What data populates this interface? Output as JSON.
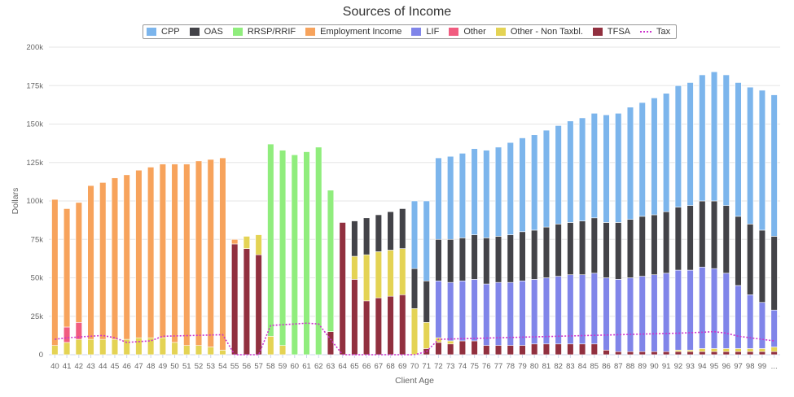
{
  "colors": {
    "cpp": "#7cb5ec",
    "oas": "#434348",
    "rrsp": "#90ed7d",
    "employment": "#f7a35c",
    "lif": "#8085e9",
    "other": "#f15c80",
    "nontax": "#e4d354",
    "tfsa": "#91303f",
    "tax": "#cc33cc",
    "grid": "#e6e6e6"
  },
  "chart_data": {
    "type": "bar",
    "stacked": true,
    "title": "Sources of Income",
    "xlabel": "Client Age",
    "ylabel": "Dollars",
    "ylim": [
      0,
      200000
    ],
    "y_ticks": [
      "0",
      "25k",
      "50k",
      "75k",
      "100k",
      "125k",
      "150k",
      "175k",
      "200k"
    ],
    "legend_position": "top",
    "grid": true,
    "categories": [
      "40",
      "41",
      "42",
      "43",
      "44",
      "45",
      "46",
      "47",
      "48",
      "49",
      "50",
      "51",
      "52",
      "53",
      "54",
      "55",
      "56",
      "57",
      "58",
      "59",
      "60",
      "61",
      "62",
      "63",
      "64",
      "65",
      "66",
      "67",
      "68",
      "69",
      "70",
      "71",
      "72",
      "73",
      "74",
      "75",
      "76",
      "77",
      "78",
      "79",
      "80",
      "81",
      "82",
      "83",
      "84",
      "85",
      "86",
      "87",
      "88",
      "89",
      "90",
      "91",
      "92",
      "93",
      "94",
      "95",
      "96",
      "97",
      "98",
      "99",
      "..."
    ],
    "series": [
      {
        "name": "CPP",
        "key": "cpp",
        "values": [
          0,
          0,
          0,
          0,
          0,
          0,
          0,
          0,
          0,
          0,
          0,
          0,
          0,
          0,
          0,
          0,
          0,
          0,
          0,
          0,
          0,
          0,
          0,
          0,
          0,
          0,
          0,
          0,
          0,
          0,
          44000,
          52000,
          53000,
          54000,
          55000,
          56000,
          57000,
          58000,
          60000,
          61000,
          62000,
          63000,
          64000,
          66000,
          67000,
          68000,
          70000,
          71000,
          73000,
          74000,
          76000,
          77000,
          79000,
          80000,
          82000,
          84000,
          85000,
          87000,
          89000,
          91000,
          92000
        ]
      },
      {
        "name": "OAS",
        "key": "oas",
        "values": [
          0,
          0,
          0,
          0,
          0,
          0,
          0,
          0,
          0,
          0,
          0,
          0,
          0,
          0,
          0,
          0,
          0,
          0,
          0,
          0,
          0,
          0,
          0,
          0,
          0,
          23000,
          24000,
          24000,
          25000,
          26000,
          26000,
          27000,
          27000,
          28000,
          28000,
          29000,
          30000,
          30000,
          31000,
          32000,
          32000,
          33000,
          34000,
          34000,
          35000,
          36000,
          36000,
          37000,
          38000,
          39000,
          39000,
          40000,
          41000,
          42000,
          43000,
          44000,
          44000,
          45000,
          46000,
          47000,
          48000
        ]
      },
      {
        "name": "RRSP/RRIF",
        "key": "rrsp",
        "values": [
          0,
          0,
          0,
          0,
          0,
          0,
          0,
          0,
          0,
          0,
          0,
          0,
          0,
          0,
          0,
          0,
          0,
          0,
          125000,
          127000,
          130000,
          132000,
          135000,
          92000,
          0,
          0,
          0,
          0,
          0,
          0,
          0,
          0,
          0,
          0,
          0,
          0,
          0,
          0,
          0,
          0,
          0,
          0,
          0,
          0,
          0,
          0,
          0,
          0,
          0,
          0,
          0,
          0,
          0,
          0,
          0,
          0,
          0,
          0,
          0,
          0,
          0
        ]
      },
      {
        "name": "Employment Income",
        "key": "employment",
        "values": [
          95000,
          77000,
          78000,
          100000,
          102000,
          105000,
          107000,
          109000,
          111000,
          113000,
          116000,
          118000,
          120000,
          122000,
          125000,
          3000,
          0,
          0,
          0,
          0,
          0,
          0,
          0,
          0,
          0,
          0,
          0,
          0,
          0,
          0,
          0,
          0,
          0,
          0,
          0,
          0,
          0,
          0,
          0,
          0,
          0,
          0,
          0,
          0,
          0,
          0,
          0,
          0,
          0,
          0,
          0,
          0,
          0,
          0,
          0,
          0,
          0,
          0,
          0,
          0,
          0
        ]
      },
      {
        "name": "LIF",
        "key": "lif",
        "values": [
          0,
          0,
          0,
          0,
          0,
          0,
          0,
          0,
          0,
          0,
          0,
          0,
          0,
          0,
          0,
          0,
          0,
          0,
          0,
          0,
          0,
          0,
          0,
          0,
          0,
          0,
          0,
          0,
          0,
          0,
          0,
          0,
          37000,
          38000,
          39000,
          40000,
          40000,
          41000,
          41000,
          42000,
          42000,
          43000,
          44000,
          45000,
          45000,
          46000,
          47000,
          47000,
          48000,
          49000,
          50000,
          51000,
          52000,
          52000,
          53000,
          52000,
          49000,
          41000,
          35000,
          30000,
          24000
        ]
      },
      {
        "name": "Other",
        "key": "other",
        "values": [
          0,
          10000,
          11000,
          0,
          0,
          0,
          0,
          0,
          0,
          0,
          0,
          0,
          0,
          0,
          0,
          0,
          0,
          0,
          0,
          0,
          0,
          0,
          0,
          0,
          0,
          0,
          0,
          0,
          0,
          0,
          0,
          0,
          0,
          0,
          0,
          0,
          0,
          0,
          0,
          0,
          0,
          0,
          0,
          0,
          0,
          0,
          0,
          0,
          0,
          0,
          0,
          0,
          0,
          0,
          0,
          0,
          0,
          0,
          0,
          0,
          0
        ]
      },
      {
        "name": "Other - Non Taxbl.",
        "key": "nontax",
        "values": [
          6000,
          8000,
          10000,
          10000,
          10000,
          10000,
          10000,
          11000,
          11000,
          11000,
          8000,
          6000,
          6000,
          5000,
          3000,
          0,
          8000,
          13000,
          12000,
          6000,
          0,
          0,
          0,
          0,
          0,
          15000,
          30000,
          30000,
          30000,
          30000,
          30000,
          17000,
          3000,
          2000,
          0,
          0,
          0,
          0,
          0,
          0,
          0,
          0,
          0,
          0,
          0,
          0,
          0,
          0,
          0,
          0,
          0,
          0,
          1000,
          1000,
          2000,
          2000,
          2000,
          2000,
          2000,
          2000,
          3000
        ]
      },
      {
        "name": "TFSA",
        "key": "tfsa",
        "values": [
          0,
          0,
          0,
          0,
          0,
          0,
          0,
          0,
          0,
          0,
          0,
          0,
          0,
          0,
          0,
          72000,
          69000,
          65000,
          0,
          0,
          0,
          0,
          0,
          15000,
          86000,
          49000,
          35000,
          37000,
          38000,
          39000,
          0,
          4000,
          8000,
          7000,
          9000,
          9000,
          6000,
          6000,
          6000,
          6000,
          7000,
          7000,
          7000,
          7000,
          7000,
          7000,
          3000,
          2000,
          2000,
          2000,
          2000,
          2000,
          2000,
          2000,
          2000,
          2000,
          2000,
          2000,
          2000,
          2000,
          2000
        ]
      }
    ],
    "line_series": {
      "name": "Tax",
      "key": "tax",
      "style": "dotted",
      "values": [
        10000,
        11000,
        11500,
        12000,
        12500,
        11000,
        8000,
        8500,
        9000,
        12000,
        12200,
        12400,
        12600,
        12800,
        13000,
        0,
        0,
        0,
        19000,
        19500,
        20000,
        20500,
        20000,
        10000,
        0,
        0,
        0,
        0,
        0,
        0,
        0,
        2000,
        10000,
        10200,
        10400,
        10600,
        10800,
        11000,
        11200,
        11400,
        11600,
        11800,
        12000,
        12200,
        12400,
        12600,
        12800,
        13000,
        13200,
        13400,
        13600,
        13800,
        14000,
        14300,
        14600,
        15000,
        14000,
        12000,
        11000,
        10000,
        9000
      ]
    }
  }
}
